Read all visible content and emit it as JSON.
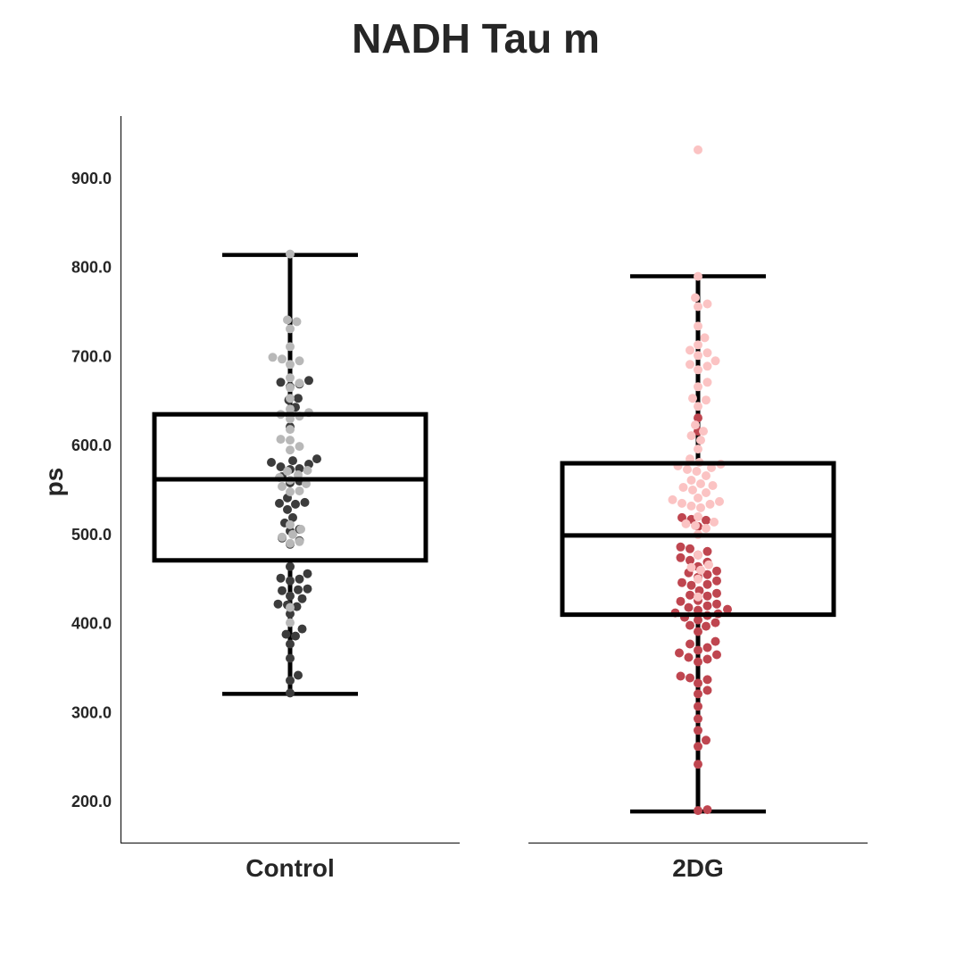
{
  "chart_data": {
    "type": "box",
    "title": "NADH Tau m",
    "ylabel": "ps",
    "xlabel": "",
    "ylim": [
      153,
      969
    ],
    "y_ticks": [
      200,
      300,
      400,
      500,
      600,
      700,
      800,
      900
    ],
    "y_tick_labels": [
      "200.0",
      "300.0",
      "400.0",
      "500.0",
      "600.0",
      "700.0",
      "800.0",
      "900.0"
    ],
    "grid": false,
    "legend": "none",
    "categories": [
      "Control",
      "2DG"
    ],
    "boxes": [
      {
        "category": "Control",
        "whisker_low": 320,
        "q1": 470,
        "median": 561,
        "q3": 634,
        "whisker_high": 813,
        "point_groups": [
          {
            "color": "#3c3c3c",
            "values": [
              321,
              335,
              341,
              360,
              376,
              385,
              387,
              393,
              410,
              418,
              420,
              421,
              427,
              430,
              436,
              437,
              438,
              447,
              449,
              450,
              455,
              463,
              488,
              492,
              495,
              503,
              505,
              512,
              518,
              527,
              533,
              534,
              535,
              540,
              557,
              559,
              564,
              572,
              573,
              575,
              578,
              580,
              582,
              584,
              620,
              633,
              642,
              650,
              652,
              665,
              668,
              670,
              672
            ]
          },
          {
            "color": "#b8b8b8",
            "values": [
              400,
              417,
              489,
              491,
              496,
              499,
              505,
              510,
              547,
              548,
              553,
              556,
              560,
              563,
              566,
              570,
              571,
              594,
              598,
              605,
              606,
              617,
              629,
              632,
              634,
              636,
              640,
              652,
              664,
              669,
              675,
              690,
              694,
              696,
              698,
              710,
              730,
              738,
              740,
              814
            ]
          }
        ]
      },
      {
        "category": "2DG",
        "whisker_low": 188,
        "q1": 409,
        "median": 498,
        "q3": 579,
        "whisker_high": 789,
        "point_groups": [
          {
            "color": "#bf4650",
            "values": [
              189,
              190,
              241,
              261,
              268,
              279,
              292,
              306,
              320,
              324,
              332,
              336,
              338,
              340,
              356,
              359,
              361,
              364,
              366,
              369,
              372,
              376,
              379,
              390,
              396,
              397,
              400,
              403,
              406,
              408,
              410,
              411,
              414,
              415,
              417,
              419,
              421,
              424,
              425,
              430,
              431,
              433,
              436,
              442,
              443,
              445,
              447,
              451,
              454,
              456,
              458,
              463,
              468,
              470,
              473,
              476,
              480,
              483,
              485,
              508,
              515,
              516,
              518,
              615,
              630
            ]
          },
          {
            "color": "#fbc3c3",
            "values": [
              429,
              449,
              459,
              462,
              465,
              476,
              499,
              506,
              509,
              511,
              513,
              519,
              529,
              531,
              533,
              534,
              536,
              538,
              540,
              546,
              549,
              552,
              554,
              556,
              560,
              565,
              570,
              572,
              574,
              576,
              578,
              580,
              584,
              595,
              605,
              610,
              615,
              622,
              643,
              650,
              652,
              665,
              670,
              684,
              688,
              690,
              694,
              700,
              703,
              706,
              712,
              720,
              733,
              755,
              758,
              765,
              789,
              931
            ]
          }
        ]
      }
    ]
  }
}
